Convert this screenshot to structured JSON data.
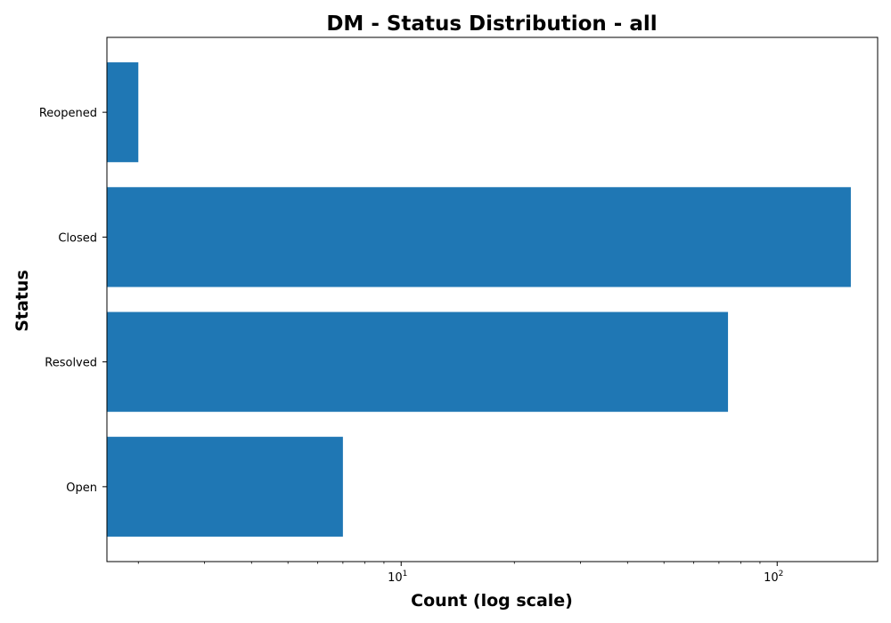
{
  "chart_data": {
    "type": "bar",
    "orientation": "horizontal",
    "title": "DM - Status Distribution - all",
    "xlabel": "Count (log scale)",
    "ylabel": "Status",
    "x_scale": "log",
    "xlim": [
      1.65,
      185
    ],
    "x_ticks": [
      {
        "base": "10",
        "exp": "1",
        "value": 10
      },
      {
        "base": "10",
        "exp": "2",
        "value": 100
      }
    ],
    "categories": [
      "Open",
      "Resolved",
      "Closed",
      "Reopened"
    ],
    "values": [
      7,
      74,
      157,
      2
    ],
    "bar_color": "#1f77b4",
    "grid": false,
    "legend": "none"
  }
}
